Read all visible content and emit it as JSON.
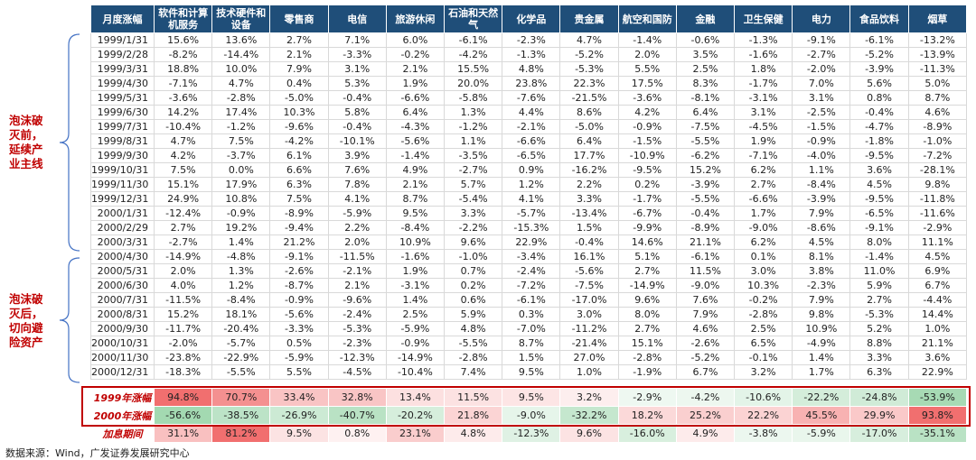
{
  "side_labels": [
    "泡沫破灭前，延续产业主线",
    "泡沫破灭后，切向避险资产"
  ],
  "table": {
    "header": [
      "月度涨幅",
      "软件和计算机服务",
      "技术硬件和设备",
      "零售商",
      "电信",
      "旅游休闲",
      "石油和天然气",
      "化学品",
      "贵金属",
      "航空和国防",
      "金融",
      "卫生保健",
      "电力",
      "食品饮料",
      "烟草"
    ],
    "rows": [
      [
        "1999/1/31",
        "15.6%",
        "13.6%",
        "2.7%",
        "7.1%",
        "6.0%",
        "-6.1%",
        "-2.3%",
        "4.7%",
        "-1.4%",
        "-0.6%",
        "-1.3%",
        "-9.1%",
        "-6.1%",
        "-13.2%"
      ],
      [
        "1999/2/28",
        "-8.2%",
        "-14.4%",
        "2.1%",
        "-3.3%",
        "-0.2%",
        "-4.2%",
        "-1.3%",
        "-5.2%",
        "2.0%",
        "3.5%",
        "-1.6%",
        "-2.7%",
        "-5.2%",
        "-13.9%"
      ],
      [
        "1999/3/31",
        "18.8%",
        "10.0%",
        "7.9%",
        "3.1%",
        "2.1%",
        "15.5%",
        "4.8%",
        "-5.3%",
        "5.5%",
        "2.5%",
        "1.8%",
        "-2.0%",
        "-3.9%",
        "-11.3%"
      ],
      [
        "1999/4/30",
        "-7.1%",
        "4.7%",
        "0.4%",
        "5.3%",
        "1.9%",
        "20.0%",
        "23.8%",
        "22.3%",
        "17.5%",
        "8.3%",
        "-1.7%",
        "7.0%",
        "5.6%",
        "5.0%"
      ],
      [
        "1999/5/31",
        "-3.6%",
        "-2.8%",
        "-5.0%",
        "-0.4%",
        "-6.6%",
        "-5.8%",
        "-7.6%",
        "-21.5%",
        "-3.6%",
        "-8.1%",
        "-3.1%",
        "3.1%",
        "0.8%",
        "8.7%"
      ],
      [
        "1999/6/30",
        "14.2%",
        "17.4%",
        "10.3%",
        "5.8%",
        "6.4%",
        "1.3%",
        "4.4%",
        "8.6%",
        "4.2%",
        "6.4%",
        "3.1%",
        "-2.5%",
        "-0.4%",
        "4.6%"
      ],
      [
        "1999/7/31",
        "-10.4%",
        "-1.2%",
        "-9.6%",
        "-0.4%",
        "-4.3%",
        "-1.2%",
        "-2.1%",
        "-5.0%",
        "-0.9%",
        "-7.5%",
        "-4.5%",
        "-1.5%",
        "-4.7%",
        "-8.9%"
      ],
      [
        "1999/8/31",
        "4.7%",
        "7.5%",
        "-4.2%",
        "-10.1%",
        "-5.6%",
        "1.1%",
        "-6.6%",
        "6.4%",
        "-1.5%",
        "-5.5%",
        "1.9%",
        "-0.9%",
        "-1.8%",
        "-1.0%"
      ],
      [
        "1999/9/30",
        "4.2%",
        "-3.7%",
        "6.1%",
        "3.9%",
        "-1.4%",
        "-3.5%",
        "-6.5%",
        "17.7%",
        "-10.9%",
        "-6.2%",
        "-7.1%",
        "-4.0%",
        "-9.5%",
        "-7.2%"
      ],
      [
        "1999/10/31",
        "7.5%",
        "0.0%",
        "6.6%",
        "7.6%",
        "4.9%",
        "-2.7%",
        "0.9%",
        "-16.2%",
        "-9.5%",
        "15.2%",
        "6.2%",
        "1.1%",
        "3.6%",
        "-28.1%"
      ],
      [
        "1999/11/30",
        "15.1%",
        "17.9%",
        "6.3%",
        "7.8%",
        "2.1%",
        "5.7%",
        "1.2%",
        "2.2%",
        "0.2%",
        "-3.9%",
        "2.7%",
        "-8.4%",
        "4.5%",
        "9.8%"
      ],
      [
        "1999/12/31",
        "24.9%",
        "10.8%",
        "7.5%",
        "4.1%",
        "8.7%",
        "-5.4%",
        "4.1%",
        "3.3%",
        "-1.7%",
        "-5.5%",
        "-6.6%",
        "-3.9%",
        "-9.5%",
        "-11.8%"
      ],
      [
        "2000/1/31",
        "-12.4%",
        "-0.9%",
        "-8.9%",
        "-5.9%",
        "9.5%",
        "3.3%",
        "-5.7%",
        "-13.4%",
        "-6.7%",
        "-0.4%",
        "1.7%",
        "7.9%",
        "-6.5%",
        "-11.6%"
      ],
      [
        "2000/2/29",
        "2.7%",
        "19.2%",
        "-9.4%",
        "2.2%",
        "-8.4%",
        "-2.2%",
        "-15.3%",
        "1.5%",
        "-9.9%",
        "-8.9%",
        "-9.0%",
        "-8.6%",
        "-9.1%",
        "-2.9%"
      ],
      [
        "2000/3/31",
        "-2.7%",
        "1.4%",
        "21.2%",
        "2.0%",
        "10.9%",
        "9.6%",
        "22.9%",
        "-0.4%",
        "14.6%",
        "21.1%",
        "6.2%",
        "4.5%",
        "8.0%",
        "11.1%"
      ],
      [
        "2000/4/30",
        "-14.9%",
        "-4.8%",
        "-9.1%",
        "-11.5%",
        "-1.6%",
        "-1.0%",
        "-3.4%",
        "16.1%",
        "5.1%",
        "-6.1%",
        "0.1%",
        "8.1%",
        "-1.4%",
        "4.5%"
      ],
      [
        "2000/5/31",
        "2.0%",
        "1.3%",
        "-2.6%",
        "-2.1%",
        "1.9%",
        "0.7%",
        "-2.4%",
        "-5.6%",
        "2.7%",
        "11.5%",
        "3.0%",
        "3.8%",
        "11.0%",
        "6.9%"
      ],
      [
        "2000/6/30",
        "4.0%",
        "1.2%",
        "-8.7%",
        "2.1%",
        "-3.1%",
        "0.2%",
        "-7.2%",
        "-7.5%",
        "-14.9%",
        "-9.0%",
        "10.3%",
        "-2.3%",
        "5.9%",
        "6.7%"
      ],
      [
        "2000/7/31",
        "-11.5%",
        "-8.4%",
        "-0.9%",
        "-9.6%",
        "1.4%",
        "0.6%",
        "-6.1%",
        "-17.0%",
        "9.6%",
        "7.6%",
        "-0.2%",
        "7.9%",
        "2.7%",
        "-4.4%"
      ],
      [
        "2000/8/31",
        "15.2%",
        "18.1%",
        "-5.6%",
        "-2.4%",
        "2.5%",
        "5.9%",
        "0.3%",
        "3.0%",
        "8.0%",
        "7.9%",
        "-2.8%",
        "9.8%",
        "-5.3%",
        "14.4%"
      ],
      [
        "2000/9/30",
        "-11.7%",
        "-20.4%",
        "-3.3%",
        "-5.3%",
        "-5.9%",
        "4.8%",
        "-7.0%",
        "-11.2%",
        "2.7%",
        "4.6%",
        "2.5%",
        "10.9%",
        "5.2%",
        "1.0%"
      ],
      [
        "2000/10/31",
        "-2.0%",
        "-5.7%",
        "0.5%",
        "-2.3%",
        "-0.9%",
        "-5.5%",
        "8.7%",
        "-21.4%",
        "15.1%",
        "-2.6%",
        "6.5%",
        "-4.9%",
        "8.8%",
        "21.1%"
      ],
      [
        "2000/11/30",
        "-23.8%",
        "-22.9%",
        "-5.9%",
        "-12.3%",
        "-14.9%",
        "-2.8%",
        "1.5%",
        "27.0%",
        "-2.8%",
        "-5.2%",
        "-0.1%",
        "1.4%",
        "3.3%",
        "3.6%"
      ],
      [
        "2000/12/31",
        "-18.3%",
        "-5.5%",
        "5.5%",
        "-4.5%",
        "-10.4%",
        "7.4%",
        "9.5%",
        "1.0%",
        "-1.9%",
        "6.7%",
        "3.2%",
        "1.7%",
        "6.3%",
        "22.9%"
      ]
    ],
    "summary_rows": [
      [
        "1999年涨幅",
        "94.8%",
        "70.7%",
        "33.4%",
        "32.8%",
        "13.4%",
        "11.5%",
        "9.5%",
        "3.2%",
        "-2.9%",
        "-4.2%",
        "-10.6%",
        "-22.2%",
        "-24.8%",
        "-53.9%"
      ],
      [
        "2000年涨幅",
        "-56.6%",
        "-38.5%",
        "-26.9%",
        "-40.7%",
        "-20.2%",
        "21.8%",
        "-9.0%",
        "-32.2%",
        "18.2%",
        "25.2%",
        "22.2%",
        "45.5%",
        "29.9%",
        "93.8%"
      ],
      [
        "加息期间",
        "31.1%",
        "81.2%",
        "9.5%",
        "0.8%",
        "23.1%",
        "4.8%",
        "-12.3%",
        "9.6%",
        "-16.0%",
        "4.9%",
        "-3.8%",
        "-5.9%",
        "-17.0%",
        "-35.1%"
      ]
    ]
  },
  "footer": "数据来源：Wind，广发证券发展研究中心"
}
